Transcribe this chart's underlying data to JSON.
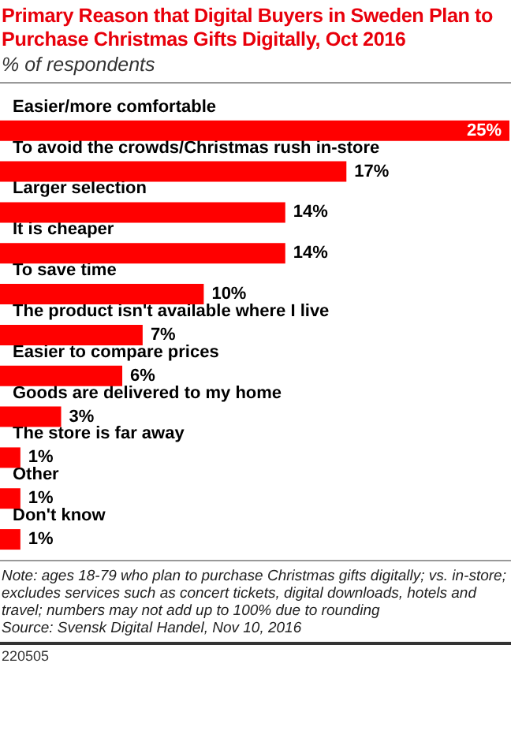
{
  "chart_data": {
    "type": "bar",
    "orientation": "horizontal",
    "title": "Primary Reason that Digital Buyers in Sweden Plan to Purchase Christmas Gifts Digitally, Oct 2016",
    "subtitle": "% of respondents",
    "categories": [
      "Easier/more comfortable",
      "To avoid the crowds/Christmas rush in-store",
      "Larger selection",
      "It is cheaper",
      "To save time",
      "The product isn't available where I live",
      "Easier to compare prices",
      "Goods are delivered to my home",
      "The store is far away",
      "Other",
      "Don't know"
    ],
    "values": [
      25,
      17,
      14,
      14,
      10,
      7,
      6,
      3,
      1,
      1,
      1
    ],
    "value_labels": [
      "25%",
      "17%",
      "14%",
      "14%",
      "10%",
      "7%",
      "6%",
      "3%",
      "1%",
      "1%",
      "1%"
    ],
    "color": "#ff0000",
    "annotations": [
      "Note: ages 18-79 who plan to purchase Christmas gifts digitally; vs. in-store; excludes services such as concert tickets, digital downloads, hotels and travel; numbers may not add up to 100% due to rounding",
      "Source: Svensk Digital Handel, Nov 10, 2016",
      "220505"
    ]
  }
}
